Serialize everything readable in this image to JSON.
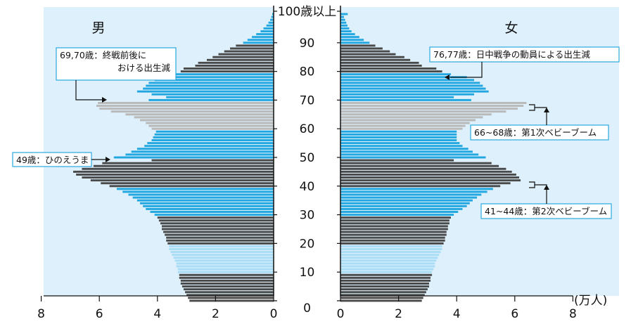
{
  "colors": {
    "panel_bg": "#ddf0fb",
    "dark": "#4a4a4a",
    "light_gray": "#b9b9b9",
    "blue": "#22a7e0",
    "light_blue": "#a9dcf5",
    "callout_border": "#2aa8e0"
  },
  "chart_data": {
    "type": "bar",
    "orientation": "horizontal-population-pyramid",
    "unit_label": "(万人)",
    "age_ticks": [
      "0",
      "10",
      "20",
      "30",
      "40",
      "50",
      "60",
      "70",
      "80",
      "90",
      "100歳以上"
    ],
    "x_ticks": [
      "8",
      "6",
      "4",
      "2",
      "0",
      "0",
      "2",
      "4",
      "6",
      "8"
    ],
    "xlim": [
      0,
      8
    ],
    "series": [
      {
        "name": "男",
        "values": [
          2.9,
          2.95,
          3.0,
          3.05,
          3.1,
          3.15,
          3.2,
          3.2,
          3.25,
          3.25,
          3.3,
          3.3,
          3.35,
          3.35,
          3.4,
          3.45,
          3.5,
          3.55,
          3.6,
          3.6,
          3.65,
          3.7,
          3.7,
          3.75,
          3.8,
          3.85,
          3.85,
          3.9,
          3.95,
          4.0,
          4.1,
          4.25,
          4.4,
          4.5,
          4.6,
          4.7,
          4.85,
          5.0,
          5.2,
          5.4,
          5.65,
          5.95,
          6.3,
          6.6,
          6.8,
          6.9,
          6.6,
          6.2,
          5.9,
          4.2,
          5.5,
          5.1,
          4.9,
          4.7,
          4.45,
          4.35,
          4.2,
          4.15,
          4.1,
          4.05,
          4.2,
          4.3,
          4.4,
          4.6,
          4.8,
          5.1,
          5.6,
          6.0,
          6.1,
          6.05,
          4.3,
          3.7,
          4.2,
          4.7,
          4.5,
          4.4,
          4.3,
          4.1,
          3.9,
          3.5,
          3.2,
          3.1,
          2.7,
          2.6,
          2.3,
          2.1,
          1.9,
          1.7,
          1.5,
          1.3,
          1.05,
          0.9,
          0.75,
          0.6,
          0.45,
          0.35,
          0.25,
          0.18,
          0.12,
          0.08,
          0.05
        ]
      },
      {
        "name": "女",
        "values": [
          2.8,
          2.85,
          2.9,
          2.95,
          3.0,
          3.05,
          3.05,
          3.1,
          3.1,
          3.15,
          3.15,
          3.2,
          3.25,
          3.25,
          3.3,
          3.35,
          3.4,
          3.45,
          3.5,
          3.5,
          3.55,
          3.6,
          3.6,
          3.65,
          3.65,
          3.7,
          3.7,
          3.75,
          3.75,
          3.8,
          3.9,
          4.05,
          4.2,
          4.35,
          4.45,
          4.55,
          4.7,
          4.85,
          5.05,
          5.25,
          5.5,
          5.85,
          6.2,
          6.15,
          6.05,
          5.9,
          5.7,
          5.45,
          5.2,
          3.9,
          5.0,
          4.75,
          4.55,
          4.4,
          4.2,
          4.1,
          4.0,
          4.0,
          4.0,
          4.0,
          4.2,
          4.3,
          4.45,
          4.65,
          4.9,
          5.2,
          5.7,
          6.1,
          6.3,
          6.4,
          4.5,
          3.9,
          4.6,
          5.1,
          5.0,
          4.9,
          4.8,
          4.6,
          4.35,
          3.8,
          3.5,
          3.3,
          2.8,
          2.7,
          2.4,
          2.2,
          1.9,
          1.7,
          1.45,
          1.2,
          1.0,
          0.8,
          0.65,
          0.5,
          0.38,
          0.3,
          0.24,
          0.2,
          0.16,
          0.12,
          0.25
        ]
      }
    ],
    "labels": {
      "male": "男",
      "female": "女"
    },
    "annotations": [
      {
        "id": "male-6970",
        "lines": [
          "69,70歳：終戦前後に",
          "おける出生減"
        ]
      },
      {
        "id": "male-49",
        "lines": [
          "49歳：ひのえうま"
        ]
      },
      {
        "id": "female-7677",
        "lines": [
          "76,77歳：日中戦争の動員による出生減"
        ]
      },
      {
        "id": "female-6668",
        "lines": [
          "66~68歳：第1次ベビーブーム"
        ]
      },
      {
        "id": "female-4144",
        "lines": [
          "41~44歳：第2次ベビーブーム"
        ]
      }
    ]
  }
}
